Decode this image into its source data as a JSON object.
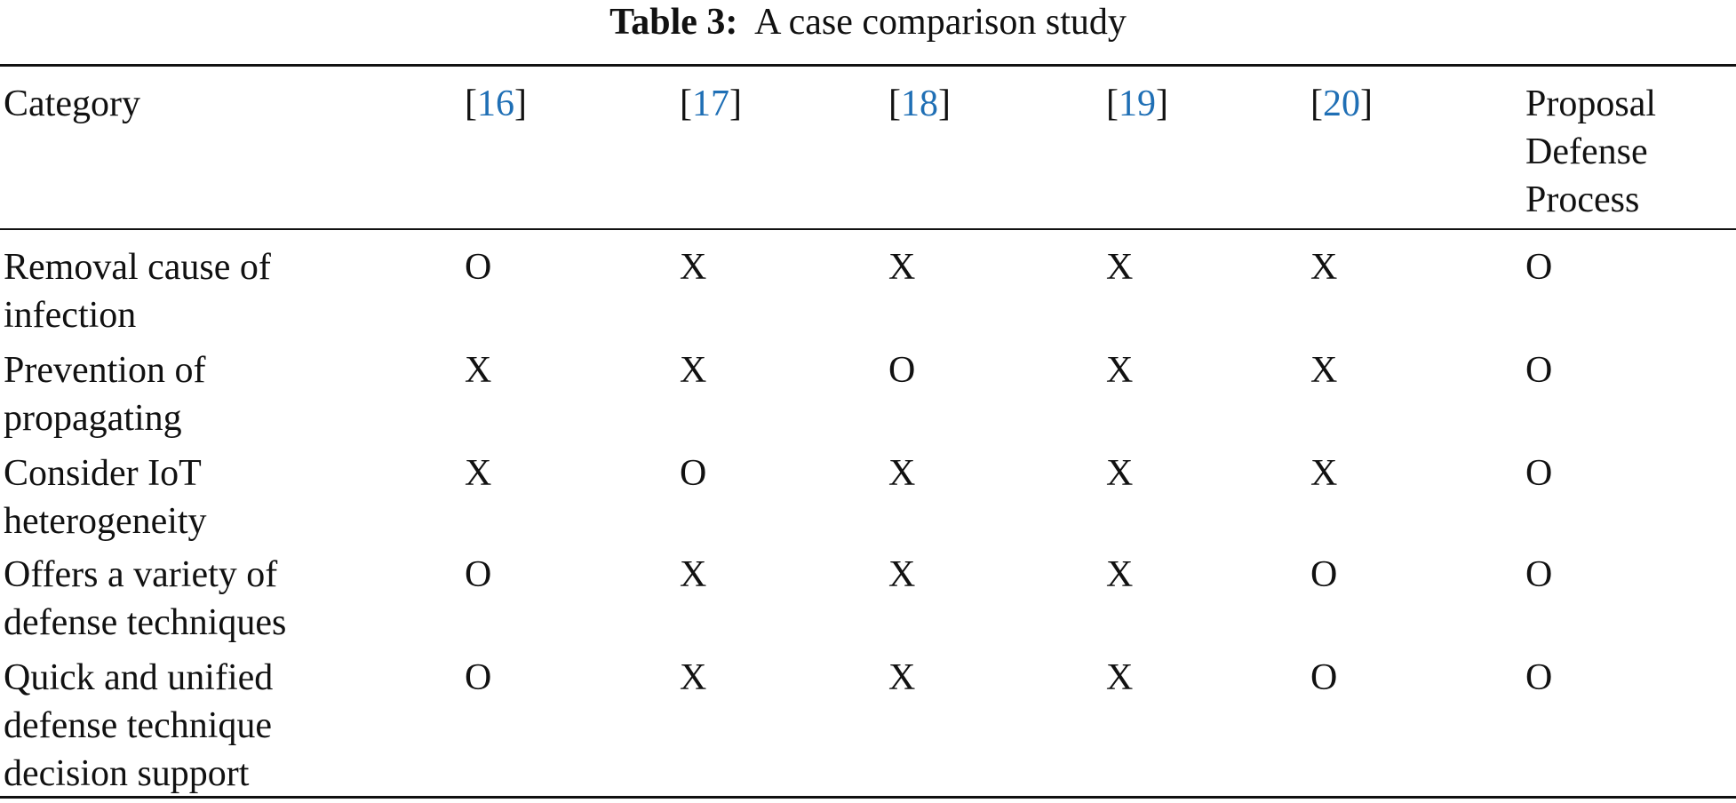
{
  "caption": {
    "label": "Table 3:",
    "text": "A case comparison study"
  },
  "table": {
    "headers": [
      "Category",
      {
        "open": "[",
        "ref": "16",
        "close": "]"
      },
      {
        "open": "[",
        "ref": "17",
        "close": "]"
      },
      {
        "open": "[",
        "ref": "18",
        "close": "]"
      },
      {
        "open": "[",
        "ref": "19",
        "close": "]"
      },
      {
        "open": "[",
        "ref": "20",
        "close": "]"
      },
      "Proposal Defense Process"
    ],
    "rows": [
      [
        "Removal cause of infection",
        "O",
        "X",
        "X",
        "X",
        "X",
        "O"
      ],
      [
        "Prevention of propagating",
        "X",
        "X",
        "O",
        "X",
        "X",
        "O"
      ],
      [
        "Consider IoT heterogeneity",
        "X",
        "O",
        "X",
        "X",
        "X",
        "O"
      ],
      [
        "Offers a variety of defense techniques",
        "O",
        "X",
        "X",
        "X",
        "O",
        "O"
      ],
      [
        "Quick and unified defense technique decision support",
        "O",
        "X",
        "X",
        "X",
        "O",
        "O"
      ]
    ]
  }
}
